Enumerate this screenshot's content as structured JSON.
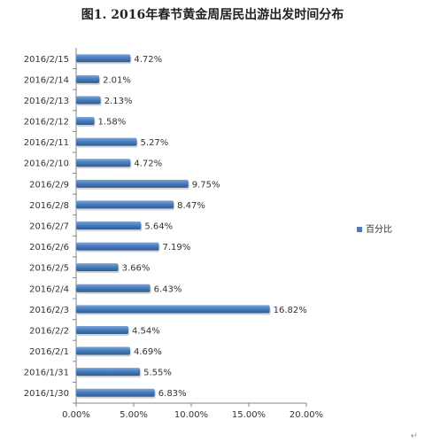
{
  "chart_data": {
    "type": "bar",
    "orientation": "horizontal",
    "title": "图1. 2016年春节黄金周居民出游出发时间分布",
    "categories": [
      "2016/2/15",
      "2016/2/14",
      "2016/2/13",
      "2016/2/12",
      "2016/2/11",
      "2016/2/10",
      "2016/2/9",
      "2016/2/8",
      "2016/2/7",
      "2016/2/6",
      "2016/2/5",
      "2016/2/4",
      "2016/2/3",
      "2016/2/2",
      "2016/2/1",
      "2016/1/31",
      "2016/1/30"
    ],
    "series": [
      {
        "name": "百分比",
        "values": [
          4.72,
          2.01,
          2.13,
          1.58,
          5.27,
          4.72,
          9.75,
          8.47,
          5.64,
          7.19,
          3.66,
          6.43,
          16.82,
          4.54,
          4.69,
          5.55,
          6.83
        ],
        "labels": [
          "4.72%",
          "2.01%",
          "2.13%",
          "1.58%",
          "5.27%",
          "4.72%",
          "9.75%",
          "8.47%",
          "5.64%",
          "7.19%",
          "3.66%",
          "6.43%",
          "16.82%",
          "4.54%",
          "4.69%",
          "5.55%",
          "6.83%"
        ]
      }
    ],
    "xlim": [
      0,
      20
    ],
    "xticks": [
      "0.00%",
      "5.00%",
      "10.00%",
      "15.00%",
      "20.00%"
    ],
    "legend_position": "right",
    "grid": false,
    "bar_color": "#4a7ebb"
  },
  "decoration": {
    "return_mark": "↵"
  }
}
